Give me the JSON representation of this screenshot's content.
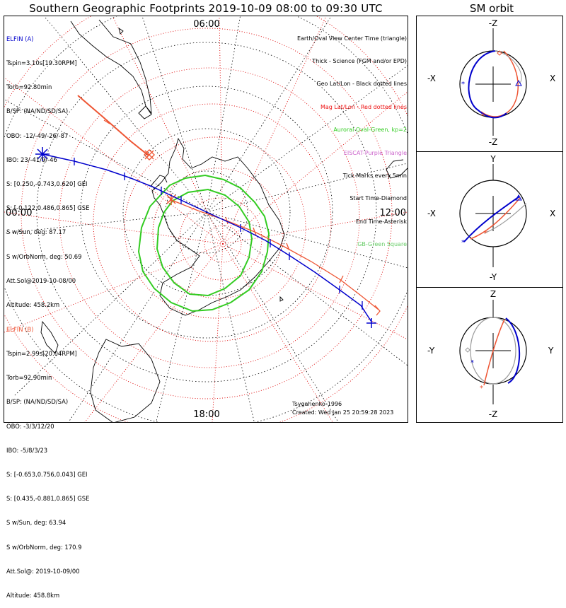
{
  "title": "Southern Geographic Footprints 2019-10-09 08:00 to 09:30 UTC",
  "sm_title": "SM orbit",
  "colors": {
    "elfin_a": "#0000cc",
    "elfin_b": "#ee5533",
    "grid": "#dd0000",
    "auroral": "#33cc22",
    "land": "#000000",
    "orbit_gray": "#9a9a9a"
  },
  "main_map": {
    "mlt_labels": {
      "top": "06:00",
      "left": "00:00",
      "right": "12:00",
      "bottom": "18:00"
    }
  },
  "elfin_a": {
    "header": "ELFIN (A)",
    "lines": [
      "Tspin=3.10s[19.30RPM]",
      "Torb=92.80min",
      "B/SP: (NA/ND/SD/SA)",
      "OBO: -12/-49/-26/-87",
      "IBO: 23/-41/9/-46",
      "S: [0.250,-0.743,0.620] GEI",
      "S: [-0.122,0.486,0.865] GSE",
      "S w/Sun, deg: 87.17",
      "S w/OrbNorm, deg: 50.69",
      "Att.Sol@2019-10-08/00",
      "Altitude: 458.2km"
    ]
  },
  "elfin_b": {
    "header": "ELFIN (B)",
    "lines": [
      "Tspin=2.99s[20.04RPM]",
      "Torb=92.90min",
      "B/SP: (NA/ND/SD/SA)",
      "OBO: -3/3/12/20",
      "IBO: -5/8/3/23",
      "S: [-0.653,0.756,0.043] GEI",
      "S: [0.435,-0.881,0.865] GSE",
      "S w/Sun, deg: 63.94",
      "S w/OrbNorm, deg: 170.9",
      "Att.Sol@: 2019-10-09/00",
      "Altitude: 458.8km"
    ]
  },
  "legend": {
    "items": [
      {
        "text": "Earth/Oval View Center Time (triangle)",
        "color": "#000000"
      },
      {
        "text": "Thick - Science (FGM and/or EPD)",
        "color": "#000000"
      },
      {
        "text": "Geo Lat/Lon - Black dotted lines",
        "color": "#000000"
      },
      {
        "text": "Mag Lat/Lon - Red dotted lines",
        "color": "#ee1111"
      },
      {
        "text": "Auroral Oval-Green, kp=2",
        "color": "#33cc22"
      },
      {
        "text": "EISCAT-Purple Triangle",
        "color": "#cc66cc"
      },
      {
        "text": "Tick Marks every 5min",
        "color": "#000000"
      },
      {
        "text": "Start Time-Diamond",
        "color": "#000000"
      },
      {
        "text": "End Time-Asterisk",
        "color": "#000000"
      },
      {
        "text": "GB-Green Square",
        "color": "#66cc66"
      }
    ]
  },
  "credits": {
    "model": "Tsyganenko-1996",
    "created": "Created: Wed Jan 25 20:59:28 2023"
  },
  "sm_panels": [
    {
      "name": "xz",
      "top": "-Z",
      "bottom": "-Z",
      "left": "-X",
      "right": "X"
    },
    {
      "name": "xy",
      "top": "Y",
      "bottom": "-Y",
      "left": "-X",
      "right": "X"
    },
    {
      "name": "yz",
      "top": "Z",
      "bottom": "-Z",
      "left": "-Y",
      "right": "Y"
    }
  ],
  "chart_data": [
    {
      "type": "polar map",
      "title": "Southern Geographic Footprints 2019-10-09 08:00 to 09:30 UTC",
      "projection": "south polar view, MLT labels 00:00 / 06:00 / 12:00 / 18:00",
      "series": [
        {
          "name": "ELFIN (A) footprint",
          "color": "#0000cc",
          "start_marker": "asterisk (west)",
          "end_marker": "tick (east)"
        },
        {
          "name": "ELFIN (B) footprint",
          "color": "#ee5533",
          "start_marker": "diamond",
          "end_marker": "asterisk"
        },
        {
          "name": "Auroral oval kp=2",
          "color": "#33cc22"
        }
      ]
    },
    {
      "type": "orbit projection",
      "title": "SM orbit",
      "panels": [
        "X-Z",
        "X-Y",
        "Y-Z"
      ]
    }
  ]
}
